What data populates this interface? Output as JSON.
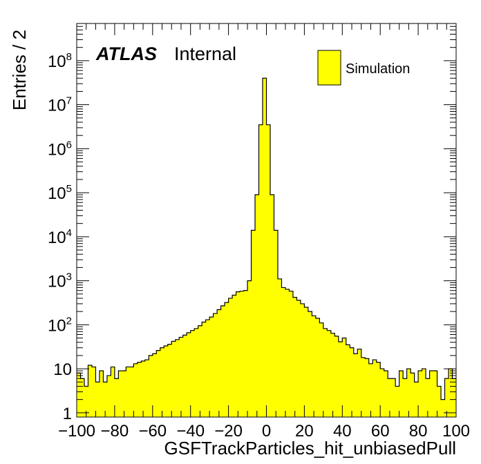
{
  "chart_data": {
    "type": "bar",
    "histogram": true,
    "xlabel": "GSFTrackParticles_hit_unbiasedPull",
    "ylabel": "Entries / 2",
    "xlim": [
      -100,
      100
    ],
    "ylim": [
      0.8,
      700000000
    ],
    "yscale": "log",
    "bin_width": 2,
    "x_ticks": [
      -100,
      -80,
      -60,
      -40,
      -20,
      0,
      20,
      40,
      60,
      80,
      100
    ],
    "x_tick_labels": [
      "−100",
      "−80",
      "−60",
      "−40",
      "−20",
      "0",
      "20",
      "40",
      "60",
      "80",
      "100"
    ],
    "y_ticks": [
      {
        "value": 1,
        "base": "1",
        "exp": ""
      },
      {
        "value": 10,
        "base": "10",
        "exp": ""
      },
      {
        "value": 100,
        "base": "10",
        "exp": "2"
      },
      {
        "value": 1000,
        "base": "10",
        "exp": "3"
      },
      {
        "value": 10000,
        "base": "10",
        "exp": "4"
      },
      {
        "value": 100000,
        "base": "10",
        "exp": "5"
      },
      {
        "value": 1000000,
        "base": "10",
        "exp": "6"
      },
      {
        "value": 10000000,
        "base": "10",
        "exp": "7"
      },
      {
        "value": 100000000,
        "base": "10",
        "exp": "8"
      }
    ],
    "series": [
      {
        "name": "Simulation",
        "color": "#ffff00",
        "edge_color": "#000000",
        "values": [
          8,
          6,
          4,
          12,
          11,
          5,
          9,
          5,
          7,
          11,
          6,
          9,
          9,
          11,
          11,
          13,
          14,
          15,
          16,
          20,
          22,
          26,
          30,
          33,
          36,
          42,
          46,
          52,
          58,
          66,
          74,
          82,
          95,
          115,
          130,
          150,
          180,
          220,
          270,
          320,
          400,
          470,
          560,
          580,
          600,
          1000,
          14000,
          90000,
          3500000,
          40000000,
          3500000,
          90000,
          14000,
          1100,
          700,
          640,
          580,
          420,
          360,
          300,
          250,
          200,
          160,
          140,
          110,
          82,
          74,
          64,
          55,
          41,
          50,
          35,
          30,
          22,
          28,
          18,
          17,
          13,
          16,
          14,
          10,
          9,
          6,
          6,
          4,
          9,
          6,
          10,
          8,
          5,
          9,
          10,
          6,
          9,
          9,
          4,
          2,
          6,
          10,
          6
        ]
      }
    ],
    "legend": {
      "position": "top-right",
      "entries": [
        "Simulation"
      ]
    }
  },
  "annotations": {
    "atlas_label": "ATLAS",
    "status_label": "Internal"
  }
}
